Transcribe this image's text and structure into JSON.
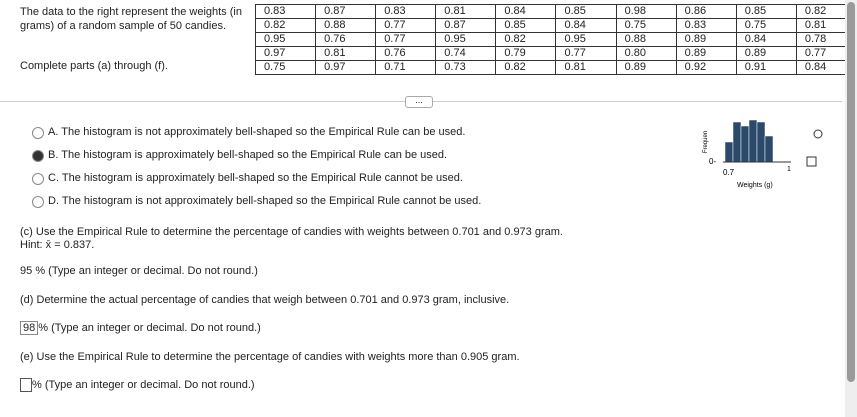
{
  "intro": {
    "text": "The data to the right represent the weights (in grams) of a random sample of 50 candies.",
    "instruction": "Complete parts (a) through (f)."
  },
  "table": {
    "rows": [
      [
        "0.83",
        "0.87",
        "0.83",
        "0.81",
        "0.84",
        "0.85",
        "0.98",
        "0.86",
        "0.85",
        "0.82"
      ],
      [
        "0.82",
        "0.88",
        "0.77",
        "0.87",
        "0.85",
        "0.84",
        "0.75",
        "0.83",
        "0.75",
        "0.81"
      ],
      [
        "0.95",
        "0.76",
        "0.77",
        "0.95",
        "0.82",
        "0.95",
        "0.88",
        "0.89",
        "0.84",
        "0.78"
      ],
      [
        "0.97",
        "0.81",
        "0.76",
        "0.74",
        "0.79",
        "0.77",
        "0.80",
        "0.89",
        "0.89",
        "0.77"
      ],
      [
        "0.75",
        "0.97",
        "0.71",
        "0.73",
        "0.82",
        "0.81",
        "0.89",
        "0.92",
        "0.91",
        "0.84"
      ]
    ]
  },
  "options": [
    {
      "letter": "A.",
      "text": "The histogram is not approximately bell-shaped so the Empirical Rule can be used."
    },
    {
      "letter": "B.",
      "text": "The histogram is approximately bell-shaped so the Empirical Rule can be used."
    },
    {
      "letter": "C.",
      "text": "The histogram is approximately bell-shaped so the Empirical Rule cannot be used."
    },
    {
      "letter": "D.",
      "text": "The histogram is not approximately bell-shaped so the Empirical Rule cannot be used."
    }
  ],
  "histogram": {
    "y_label": "Frequen",
    "y_zero": "0-",
    "x_start": "0.7",
    "x_end": "1",
    "x_label": "Weights (g)"
  },
  "part_c": {
    "question": "(c) Use the Empirical Rule to determine the percentage of candies with weights between 0.701 and 0.973 gram.",
    "hint": "Hint: x̄ = 0.837.",
    "answer": "95",
    "note": "% (Type an integer or decimal. Do not round.)"
  },
  "part_d": {
    "question": "(d) Determine the actual percentage of candies that weigh between 0.701 and 0.973 gram, inclusive.",
    "answer": "98",
    "note": "% (Type an integer or decimal. Do not round.)"
  },
  "part_e": {
    "question": "(e) Use the Empirical Rule to determine the percentage of candies with weights more than 0.905 gram.",
    "note": "% (Type an integer or decimal. Do not round.)"
  }
}
